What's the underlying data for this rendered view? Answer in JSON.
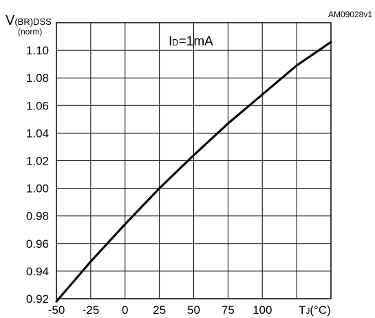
{
  "doc_id": "AM09028v1",
  "chart_data": {
    "type": "line",
    "ylabel_main": "V",
    "ylabel_sub": "(BR)DSS",
    "ylabel_unit": "(norm)",
    "xlabel_main": "T",
    "xlabel_sub": "J",
    "xlabel_unit": "(°C)",
    "annotation_main": "I",
    "annotation_sub": "D",
    "annotation_value": "=1mA",
    "xlim": [
      -50,
      150
    ],
    "ylim": [
      0.92,
      1.12
    ],
    "x_ticks": [
      -50,
      -25,
      0,
      25,
      50,
      75,
      100
    ],
    "x_tick_labels": [
      "-50",
      "-25",
      "0",
      "25",
      "50",
      "75",
      "100"
    ],
    "y_ticks": [
      0.92,
      0.94,
      0.96,
      0.98,
      1.0,
      1.02,
      1.04,
      1.06,
      1.08,
      1.1
    ],
    "y_tick_labels": [
      "0.92",
      "0.94",
      "0.96",
      "0.98",
      "1.00",
      "1.02",
      "1.04",
      "1.06",
      "1.08",
      "1.10"
    ],
    "grid": true,
    "series": [
      {
        "x": [
          -50,
          -25,
          0,
          25,
          50,
          75,
          100,
          125,
          150
        ],
        "values": [
          0.918,
          0.947,
          0.974,
          1.0,
          1.024,
          1.047,
          1.068,
          1.089,
          1.106
        ]
      }
    ]
  }
}
